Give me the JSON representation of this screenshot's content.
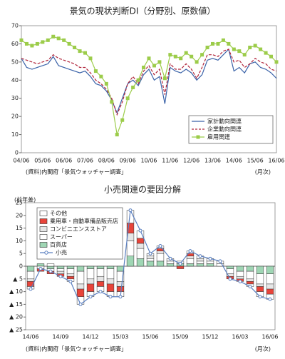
{
  "chart_data": [
    {
      "type": "line",
      "title": "景気の現状判断DI（分野別、原数値）",
      "categories": [
        "04/06",
        null,
        null,
        null,
        "05/06",
        null,
        null,
        null,
        "06/06",
        null,
        null,
        null,
        "07/06",
        null,
        null,
        null,
        "08/06",
        null,
        null,
        null,
        "09/06",
        null,
        null,
        null,
        "10/06",
        null,
        null,
        null,
        "11/06",
        null,
        null,
        null,
        "12/06",
        null,
        null,
        null,
        "13/06",
        null,
        null,
        null,
        "14/06",
        null,
        null,
        null,
        "15/06",
        null,
        null,
        null,
        "16/06"
      ],
      "series": [
        {
          "name": "家計動向関連",
          "color": "#3a62a8",
          "dash": false,
          "marker": "none",
          "values": [
            52,
            47,
            46,
            47,
            48,
            49,
            53,
            48,
            47,
            46,
            45,
            44,
            45,
            42,
            38,
            37,
            34,
            29,
            22,
            30,
            38,
            40,
            37,
            43,
            46,
            40,
            42,
            27,
            47,
            45,
            44,
            46,
            44,
            40,
            43,
            51,
            52,
            51,
            54,
            57,
            45,
            47,
            44,
            49,
            50,
            47,
            46,
            44,
            41
          ]
        },
        {
          "name": "企業動向関連",
          "color": "#b0243a",
          "dash": true,
          "marker": "none",
          "values": [
            52,
            51,
            50,
            49,
            50,
            51,
            54,
            52,
            51,
            50,
            49,
            47,
            47,
            44,
            40,
            38,
            35,
            30,
            21,
            28,
            38,
            42,
            38,
            45,
            48,
            43,
            46,
            32,
            49,
            46,
            46,
            49,
            46,
            41,
            47,
            54,
            54,
            53,
            56,
            57,
            50,
            51,
            47,
            49,
            52,
            50,
            49,
            46,
            45
          ]
        },
        {
          "name": "雇用関連",
          "color": "#9ccc4a",
          "dash": false,
          "marker": "square",
          "values": [
            62,
            60,
            59,
            60,
            61,
            62,
            64,
            63,
            62,
            60,
            58,
            56,
            55,
            52,
            45,
            42,
            38,
            28,
            10,
            18,
            30,
            36,
            40,
            47,
            52,
            48,
            50,
            41,
            54,
            53,
            52,
            55,
            53,
            50,
            54,
            58,
            60,
            60,
            62,
            60,
            57,
            56,
            54,
            58,
            59,
            57,
            55,
            53,
            50
          ]
        }
      ],
      "ylim": [
        0,
        70
      ],
      "yticks": [
        0,
        10,
        20,
        30,
        40,
        50,
        60,
        70
      ],
      "grid": false,
      "legend": "lower-right",
      "source": "(資料)内閣府「景気ウォッチャー調査」",
      "note": "(月次)"
    },
    {
      "type": "bar",
      "stacked": true,
      "title": "小売関連の要因分解",
      "y_label": "(前年差)",
      "categories": [
        "14/06",
        null,
        null,
        "14/09",
        null,
        null,
        "14/12",
        null,
        null,
        "15/03",
        null,
        null,
        "15/06",
        null,
        null,
        "15/09",
        null,
        null,
        "15/12",
        null,
        null,
        "16/03",
        null,
        null,
        "16/06"
      ],
      "series": [
        {
          "name": "その他",
          "color": "#ffffff",
          "values": [
            -1,
            0,
            1,
            0,
            -1,
            -3,
            -2,
            -2,
            -2,
            -2,
            5,
            3,
            1,
            1,
            1,
            1,
            1,
            1,
            1,
            1,
            0,
            0,
            -1,
            -2,
            -2
          ]
        },
        {
          "name": "乗用車・自動車備品販売店",
          "color": "#e8443a",
          "values": [
            -2,
            -1,
            -1,
            -1,
            -1,
            -3,
            -3,
            -2,
            -3,
            -2,
            4,
            2,
            0,
            1,
            0,
            -1,
            1,
            0,
            0,
            0,
            -1,
            -1,
            -1,
            -2,
            -2
          ]
        },
        {
          "name": "コンビニエンスストア",
          "color": "#e6e6e6",
          "values": [
            -1,
            0,
            0,
            -1,
            -1,
            -2,
            -2,
            -2,
            -2,
            -2,
            3,
            2,
            1,
            1,
            0,
            0,
            1,
            1,
            0,
            0,
            -1,
            -1,
            -1,
            -1,
            -2
          ]
        },
        {
          "name": "スーパー",
          "color": "#ffffff",
          "values": [
            -3,
            -1,
            -1,
            -1,
            -2,
            -5,
            -4,
            -3,
            -4,
            -4,
            6,
            4,
            1,
            3,
            1,
            0,
            2,
            1,
            1,
            1,
            -2,
            -2,
            -3,
            -4,
            -4
          ]
        },
        {
          "name": "百貨店",
          "color": "#9fd6b4",
          "values": [
            -2,
            1,
            -1,
            -1,
            -1,
            -2,
            -1,
            -1,
            -1,
            -2,
            4,
            3,
            2,
            2,
            1,
            1,
            1,
            1,
            1,
            0,
            -1,
            -2,
            -2,
            -3,
            -3
          ]
        },
        {
          "name": "小売",
          "type": "line",
          "color": "#5a7fc0",
          "marker": "circle",
          "values": [
            -9,
            -1,
            -2,
            -4,
            -6,
            -15,
            -12,
            -10,
            -12,
            -12,
            22,
            14,
            5,
            8,
            3,
            1,
            6,
            4,
            3,
            2,
            -5,
            -6,
            -8,
            -12,
            -13
          ]
        }
      ],
      "ylim": [
        -25,
        25
      ],
      "yticks": [
        25,
        20,
        15,
        10,
        5,
        0,
        {
          "value": -5,
          "label": "▲ 5"
        },
        {
          "value": -10,
          "label": "▲ 10"
        },
        {
          "value": -15,
          "label": "▲ 15"
        },
        {
          "value": -20,
          "label": "▲ 20"
        },
        {
          "value": -25,
          "label": "▲ 25"
        }
      ],
      "grid": false,
      "legend": "upper-left",
      "source": "(資料)内閣府「景気ウォッチャー調査」",
      "note": "(月次)"
    }
  ]
}
